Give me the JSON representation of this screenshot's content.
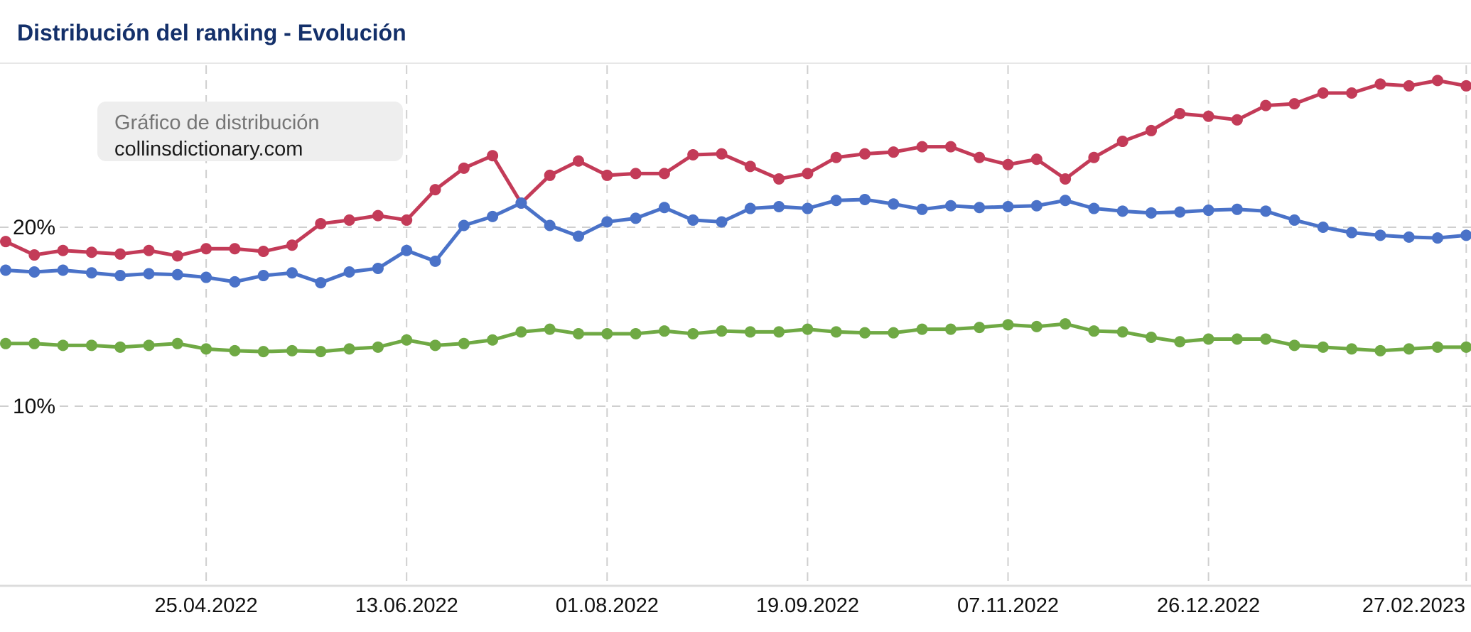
{
  "header": {
    "title": "Distribución del ranking - Evolución"
  },
  "tooltip": {
    "line1": "Gráfico de distribución",
    "line2": "collinsdictionary.com"
  },
  "colors": {
    "title_text": "#14306a",
    "grid": "#cfcfcf",
    "axis_line": "#dcdcdc",
    "tooltip_bg": "#eeeeee",
    "tooltip_text_secondary": "#757575",
    "tooltip_text_primary": "#1c1c1c",
    "axis_label_text": "#111111",
    "series_red": "#c33b58",
    "series_blue": "#4a72c8",
    "series_green": "#6fa944"
  },
  "chart_data": {
    "type": "line",
    "title": "Distribución del ranking - Evolución",
    "unit": "%",
    "grid": "dashed",
    "legend_position": "none",
    "marker": "dot",
    "ylim": [
      0,
      29
    ],
    "y_ticks": [
      {
        "label": "20%",
        "value": 20
      },
      {
        "label": "10%",
        "value": 10
      }
    ],
    "x_tick_labels": [
      "25.04.2022",
      "13.06.2022",
      "01.08.2022",
      "19.09.2022",
      "07.11.2022",
      "26.12.2022",
      "27.02.2023"
    ],
    "x_tick_indices": [
      7,
      14,
      21,
      28,
      35,
      42,
      51
    ],
    "x": [
      "07.03.2022",
      "14.03.2022",
      "21.03.2022",
      "28.03.2022",
      "04.04.2022",
      "11.04.2022",
      "18.04.2022",
      "25.04.2022",
      "02.05.2022",
      "09.05.2022",
      "16.05.2022",
      "23.05.2022",
      "30.05.2022",
      "06.06.2022",
      "13.06.2022",
      "20.06.2022",
      "27.06.2022",
      "04.07.2022",
      "11.07.2022",
      "18.07.2022",
      "25.07.2022",
      "01.08.2022",
      "08.08.2022",
      "15.08.2022",
      "22.08.2022",
      "29.08.2022",
      "05.09.2022",
      "12.09.2022",
      "19.09.2022",
      "26.09.2022",
      "03.10.2022",
      "10.10.2022",
      "17.10.2022",
      "24.10.2022",
      "31.10.2022",
      "07.11.2022",
      "14.11.2022",
      "21.11.2022",
      "28.11.2022",
      "05.12.2022",
      "12.12.2022",
      "19.12.2022",
      "26.12.2022",
      "02.01.2023",
      "09.01.2023",
      "16.01.2023",
      "23.01.2023",
      "30.01.2023",
      "06.02.2023",
      "13.02.2023",
      "20.02.2023",
      "27.02.2023"
    ],
    "series": [
      {
        "name": "series-red",
        "color": "#c33b58",
        "values": [
          19.2,
          18.45,
          18.7,
          18.6,
          18.5,
          18.7,
          18.4,
          18.8,
          18.8,
          18.65,
          19.0,
          20.2,
          20.4,
          20.65,
          20.4,
          22.1,
          23.3,
          24.0,
          21.35,
          22.9,
          23.7,
          22.9,
          23.0,
          23.0,
          24.05,
          24.1,
          23.4,
          22.7,
          23.0,
          23.9,
          24.1,
          24.2,
          24.5,
          24.5,
          23.9,
          23.5,
          23.8,
          22.7,
          23.9,
          24.8,
          25.4,
          26.35,
          26.2,
          26.0,
          26.8,
          26.9,
          27.5,
          27.5,
          28.0,
          27.9,
          28.2,
          27.9
        ]
      },
      {
        "name": "series-blue",
        "color": "#4a72c8",
        "values": [
          17.6,
          17.5,
          17.6,
          17.45,
          17.3,
          17.4,
          17.35,
          17.2,
          16.95,
          17.3,
          17.45,
          16.9,
          17.5,
          17.7,
          18.7,
          18.1,
          20.1,
          20.6,
          21.35,
          20.1,
          19.5,
          20.3,
          20.5,
          21.1,
          20.4,
          20.3,
          21.05,
          21.15,
          21.05,
          21.5,
          21.55,
          21.3,
          21.0,
          21.2,
          21.1,
          21.15,
          21.2,
          21.5,
          21.05,
          20.9,
          20.8,
          20.85,
          20.95,
          21.0,
          20.9,
          20.4,
          20.0,
          19.7,
          19.55,
          19.45,
          19.4,
          19.55
        ]
      },
      {
        "name": "series-green",
        "color": "#6fa944",
        "values": [
          13.5,
          13.5,
          13.4,
          13.4,
          13.3,
          13.4,
          13.5,
          13.2,
          13.1,
          13.05,
          13.1,
          13.05,
          13.2,
          13.3,
          13.7,
          13.4,
          13.5,
          13.7,
          14.15,
          14.3,
          14.05,
          14.05,
          14.05,
          14.2,
          14.05,
          14.2,
          14.15,
          14.15,
          14.3,
          14.15,
          14.1,
          14.1,
          14.3,
          14.3,
          14.4,
          14.55,
          14.45,
          14.6,
          14.2,
          14.15,
          13.85,
          13.6,
          13.75,
          13.75,
          13.75,
          13.4,
          13.3,
          13.2,
          13.1,
          13.2,
          13.3,
          13.3
        ]
      }
    ]
  }
}
